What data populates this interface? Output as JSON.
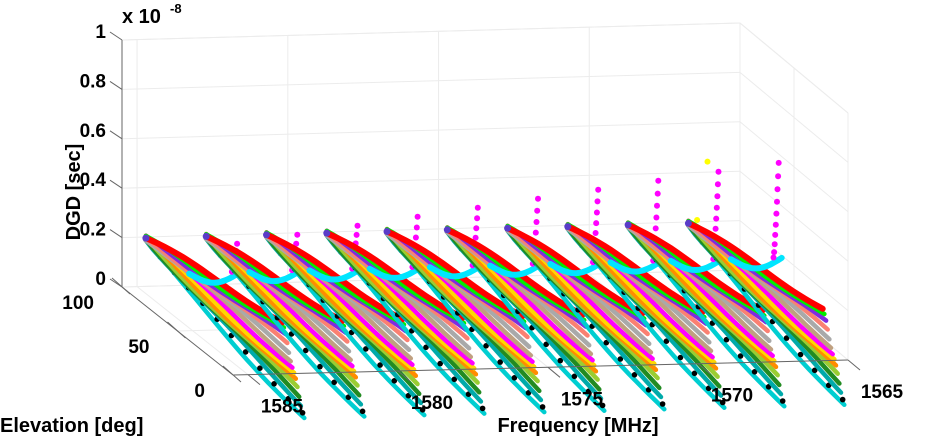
{
  "chart_data": {
    "type": "scatter3d",
    "title": "",
    "zlabel": "DGD [sec]",
    "xlabel": "Frequency [MHz]",
    "ylabel": "Elevation [deg]",
    "z_multiplier_label": "x 10",
    "z_multiplier_exponent": "-8",
    "xlim": [
      1565,
      1585.5
    ],
    "ylim": [
      0,
      100
    ],
    "zlim": [
      0,
      1
    ],
    "x_ticks": [
      "1585",
      "1580",
      "1575",
      "1570",
      "1565"
    ],
    "x_tick_values": [
      1585,
      1580,
      1575,
      1570,
      1565
    ],
    "y_ticks": [
      "0",
      "50",
      "100"
    ],
    "y_tick_values": [
      0,
      50,
      100
    ],
    "z_ticks": [
      "0",
      "0.2",
      "0.4",
      "0.6",
      "0.8",
      "1"
    ],
    "z_tick_values": [
      0,
      0.2,
      0.4,
      0.6,
      0.8,
      1
    ],
    "grid": true,
    "fan_frequencies": [
      1585,
      1583,
      1581,
      1579,
      1577,
      1575,
      1573,
      1571,
      1569,
      1567
    ],
    "series_colors": [
      "#ff0000",
      "#00ee00",
      "#7f2be0",
      "#fa8072",
      "#a9a9a9",
      "#c0a080",
      "#ff00ff",
      "#ffd700",
      "#ff8c00",
      "#9acd32",
      "#228b22",
      "#00aaaa",
      "#000000",
      "#00ced1"
    ],
    "series_note_top": {
      "elevation": 90,
      "dgd": 0.22
    },
    "cyan_arc_color": "#00e5ff",
    "magenta_rise_color": "#ff00ff",
    "yellow_color": "#ffff00"
  }
}
